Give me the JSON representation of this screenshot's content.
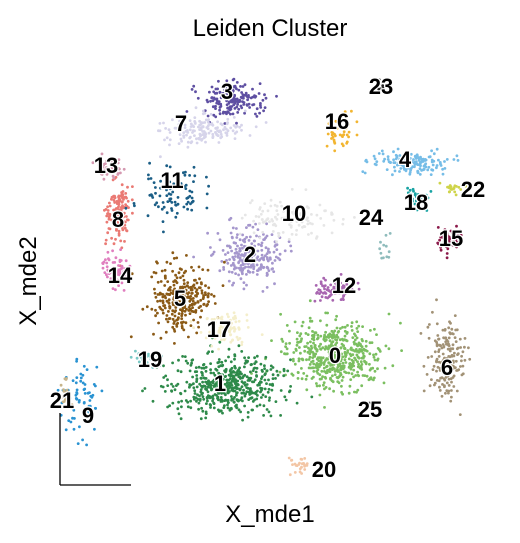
{
  "chart_data": {
    "type": "scatter",
    "title": "Leiden Cluster",
    "xlabel": "X_mde1",
    "ylabel": "X_mde2",
    "grid": false,
    "legend": "on data",
    "series": [
      {
        "name": "0",
        "color": "#7bbf60",
        "center": [
          335,
          355
        ],
        "spread": [
          48,
          32
        ],
        "points": 520
      },
      {
        "name": "1",
        "color": "#2e8a4a",
        "center": [
          225,
          385
        ],
        "spread": [
          55,
          30
        ],
        "points": 520
      },
      {
        "name": "2",
        "color": "#a597cd",
        "center": [
          250,
          255
        ],
        "spread": [
          30,
          25
        ],
        "points": 260
      },
      {
        "name": "3",
        "color": "#5e4fa2",
        "center": [
          232,
          100
        ],
        "spread": [
          30,
          18
        ],
        "points": 180
      },
      {
        "name": "4",
        "color": "#76bde7",
        "center": [
          408,
          162
        ],
        "spread": [
          35,
          12
        ],
        "points": 150
      },
      {
        "name": "5",
        "color": "#8b5a16",
        "center": [
          182,
          300
        ],
        "spread": [
          30,
          35
        ],
        "points": 280
      },
      {
        "name": "6",
        "color": "#a29276",
        "center": [
          446,
          360
        ],
        "spread": [
          18,
          40
        ],
        "points": 170
      },
      {
        "name": "7",
        "color": "#d6d4ea",
        "center": [
          200,
          130
        ],
        "spread": [
          40,
          15
        ],
        "points": 150
      },
      {
        "name": "8",
        "color": "#ea7a74",
        "center": [
          118,
          212
        ],
        "spread": [
          12,
          30
        ],
        "points": 140
      },
      {
        "name": "9",
        "color": "#2a93d2",
        "center": [
          80,
          400
        ],
        "spread": [
          20,
          40
        ],
        "points": 70
      },
      {
        "name": "10",
        "color": "#e6e6e6",
        "center": [
          290,
          220
        ],
        "spread": [
          50,
          20
        ],
        "points": 110
      },
      {
        "name": "11",
        "color": "#1b5e86",
        "center": [
          170,
          195
        ],
        "spread": [
          30,
          30
        ],
        "points": 90
      },
      {
        "name": "12",
        "color": "#a866b0",
        "center": [
          335,
          290
        ],
        "spread": [
          20,
          10
        ],
        "points": 80
      },
      {
        "name": "13",
        "color": "#d498b0",
        "center": [
          110,
          168
        ],
        "spread": [
          12,
          12
        ],
        "points": 50
      },
      {
        "name": "14",
        "color": "#e07fbf",
        "center": [
          118,
          270
        ],
        "spread": [
          15,
          15
        ],
        "points": 70
      },
      {
        "name": "15",
        "color": "#8b1a4a",
        "center": [
          450,
          238
        ],
        "spread": [
          14,
          12
        ],
        "points": 60
      },
      {
        "name": "16",
        "color": "#f2b530",
        "center": [
          340,
          130
        ],
        "spread": [
          15,
          25
        ],
        "points": 40
      },
      {
        "name": "17",
        "color": "#f4eecb",
        "center": [
          225,
          330
        ],
        "spread": [
          25,
          15
        ],
        "points": 90
      },
      {
        "name": "18",
        "color": "#18a3a3",
        "center": [
          415,
          200
        ],
        "spread": [
          10,
          10
        ],
        "points": 40
      },
      {
        "name": "19",
        "color": "#79c9c5",
        "center": [
          148,
          358
        ],
        "spread": [
          12,
          8
        ],
        "points": 30
      },
      {
        "name": "20",
        "color": "#f3c6a5",
        "center": [
          300,
          465
        ],
        "spread": [
          12,
          10
        ],
        "points": 25
      },
      {
        "name": "21",
        "color": "#c7b48a",
        "center": [
          65,
          395
        ],
        "spread": [
          6,
          14
        ],
        "points": 25
      },
      {
        "name": "22",
        "color": "#cfd44a",
        "center": [
          452,
          188
        ],
        "spread": [
          10,
          5
        ],
        "points": 20
      },
      {
        "name": "23",
        "color": "#222222",
        "center": [
          380,
          87
        ],
        "spread": [
          6,
          6
        ],
        "points": 8
      },
      {
        "name": "24",
        "color": "#8fbcbc",
        "center": [
          385,
          245
        ],
        "spread": [
          10,
          20
        ],
        "points": 12
      },
      {
        "name": "25",
        "color": "#444444",
        "center": [
          370,
          405
        ],
        "spread": [
          6,
          6
        ],
        "points": 4
      }
    ],
    "labels": [
      {
        "text": "0",
        "x": 335,
        "y": 357
      },
      {
        "text": "1",
        "x": 220,
        "y": 385
      },
      {
        "text": "2",
        "x": 250,
        "y": 256
      },
      {
        "text": "3",
        "x": 227,
        "y": 93
      },
      {
        "text": "4",
        "x": 405,
        "y": 161
      },
      {
        "text": "5",
        "x": 180,
        "y": 300
      },
      {
        "text": "6",
        "x": 447,
        "y": 369
      },
      {
        "text": "7",
        "x": 181,
        "y": 125
      },
      {
        "text": "8",
        "x": 118,
        "y": 221
      },
      {
        "text": "9",
        "x": 88,
        "y": 417
      },
      {
        "text": "10",
        "x": 294,
        "y": 215
      },
      {
        "text": "11",
        "x": 172,
        "y": 182
      },
      {
        "text": "12",
        "x": 344,
        "y": 287
      },
      {
        "text": "13",
        "x": 106,
        "y": 167
      },
      {
        "text": "14",
        "x": 120,
        "y": 277
      },
      {
        "text": "15",
        "x": 451,
        "y": 240
      },
      {
        "text": "16",
        "x": 337,
        "y": 123
      },
      {
        "text": "17",
        "x": 219,
        "y": 331
      },
      {
        "text": "18",
        "x": 416,
        "y": 204
      },
      {
        "text": "19",
        "x": 150,
        "y": 361
      },
      {
        "text": "20",
        "x": 324,
        "y": 471
      },
      {
        "text": "21",
        "x": 62,
        "y": 402
      },
      {
        "text": "22",
        "x": 473,
        "y": 191
      },
      {
        "text": "23",
        "x": 381,
        "y": 88
      },
      {
        "text": "24",
        "x": 371,
        "y": 219
      },
      {
        "text": "25",
        "x": 370,
        "y": 411
      }
    ]
  }
}
